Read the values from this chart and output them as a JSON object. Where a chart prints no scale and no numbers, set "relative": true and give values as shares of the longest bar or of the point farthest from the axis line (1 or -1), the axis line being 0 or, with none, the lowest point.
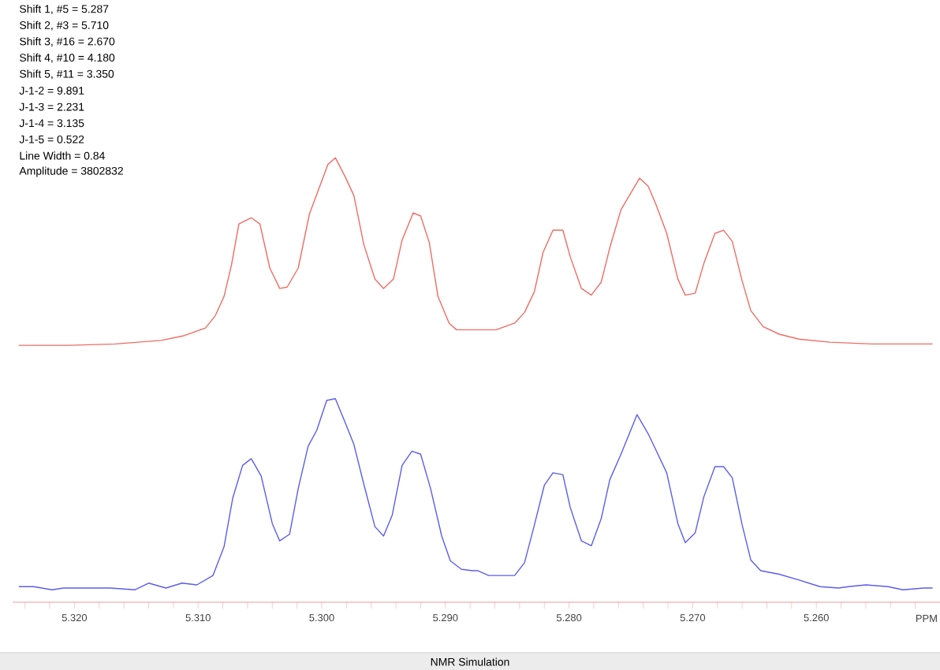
{
  "chart_data": {
    "type": "line",
    "title": "NMR Simulation",
    "xlabel": "PPM",
    "relative": true,
    "annotations": [
      "Shift 1, #5 =   5.287",
      "Shift 2, #3 =   5.710",
      "Shift 3, #16 =   2.670",
      "Shift 4, #10 =   4.180",
      "Shift 5, #11 =   3.350",
      "J-1-2 =   9.891",
      "J-1-3 =   2.231",
      "J-1-4 =   3.135",
      "J-1-5 =   0.522",
      "Line Width =   0.84",
      "Amplitude =      3802832"
    ],
    "xlim": [
      5.325,
      5.25
    ],
    "xticks": [
      {
        "value": 5.324,
        "label": null
      },
      {
        "value": 5.322,
        "label": null
      },
      {
        "value": 5.32,
        "label": "5.320"
      },
      {
        "value": 5.318,
        "label": null
      },
      {
        "value": 5.316,
        "label": null
      },
      {
        "value": 5.314,
        "label": null
      },
      {
        "value": 5.312,
        "label": null
      },
      {
        "value": 5.31,
        "label": "5.310"
      },
      {
        "value": 5.308,
        "label": null
      },
      {
        "value": 5.306,
        "label": null
      },
      {
        "value": 5.304,
        "label": null
      },
      {
        "value": 5.302,
        "label": null
      },
      {
        "value": 5.3,
        "label": "5.300"
      },
      {
        "value": 5.298,
        "label": null
      },
      {
        "value": 5.296,
        "label": null
      },
      {
        "value": 5.294,
        "label": null
      },
      {
        "value": 5.292,
        "label": null
      },
      {
        "value": 5.29,
        "label": "5.290"
      },
      {
        "value": 5.288,
        "label": null
      },
      {
        "value": 5.286,
        "label": null
      },
      {
        "value": 5.284,
        "label": null
      },
      {
        "value": 5.282,
        "label": null
      },
      {
        "value": 5.28,
        "label": "5.280"
      },
      {
        "value": 5.278,
        "label": null
      },
      {
        "value": 5.276,
        "label": null
      },
      {
        "value": 5.274,
        "label": null
      },
      {
        "value": 5.272,
        "label": null
      },
      {
        "value": 5.27,
        "label": "5.270"
      },
      {
        "value": 5.268,
        "label": null
      },
      {
        "value": 5.266,
        "label": null
      },
      {
        "value": 5.264,
        "label": null
      },
      {
        "value": 5.262,
        "label": null
      },
      {
        "value": 5.26,
        "label": "5.260"
      },
      {
        "value": 5.258,
        "label": null
      },
      {
        "value": 5.256,
        "label": null
      },
      {
        "value": 5.254,
        "label": null
      },
      {
        "value": 5.252,
        "label": null
      }
    ],
    "series": [
      {
        "color": "#f06c64",
        "x": [
          5.3245,
          5.3205,
          5.3167,
          5.313,
          5.3111,
          5.3094,
          5.3086,
          5.3079,
          5.3073,
          5.3067,
          5.3057,
          5.305,
          5.3042,
          5.3034,
          5.3028,
          5.3019,
          5.301,
          5.2995,
          5.2989,
          5.2981,
          5.2974,
          5.2966,
          5.2957,
          5.295,
          5.2942,
          5.2935,
          5.2926,
          5.292,
          5.2913,
          5.2906,
          5.2897,
          5.2891,
          5.2874,
          5.2859,
          5.2844,
          5.2836,
          5.2828,
          5.2821,
          5.2813,
          5.2805,
          5.2799,
          5.279,
          5.2782,
          5.2774,
          5.2767,
          5.2758,
          5.2743,
          5.2736,
          5.273,
          5.2721,
          5.2712,
          5.2706,
          5.2698,
          5.2691,
          5.2682,
          5.2675,
          5.2668,
          5.266,
          5.2653,
          5.2643,
          5.263,
          5.2614,
          5.2589,
          5.2555,
          5.2506
        ],
        "values": [
          0.578,
          0.578,
          0.581,
          0.589,
          0.6,
          0.617,
          0.645,
          0.688,
          0.759,
          0.851,
          0.865,
          0.851,
          0.752,
          0.706,
          0.709,
          0.752,
          0.873,
          0.985,
          1,
          0.957,
          0.915,
          0.805,
          0.727,
          0.706,
          0.727,
          0.815,
          0.876,
          0.869,
          0.809,
          0.688,
          0.628,
          0.613,
          0.613,
          0.613,
          0.628,
          0.652,
          0.699,
          0.787,
          0.837,
          0.837,
          0.777,
          0.706,
          0.691,
          0.72,
          0.798,
          0.883,
          0.954,
          0.936,
          0.897,
          0.83,
          0.727,
          0.691,
          0.695,
          0.762,
          0.83,
          0.837,
          0.812,
          0.723,
          0.656,
          0.62,
          0.603,
          0.592,
          0.585,
          0.581,
          0.581
        ]
      },
      {
        "color": "#5c5cf0",
        "x": [
          5.3245,
          5.3233,
          5.3218,
          5.3209,
          5.3192,
          5.318,
          5.3171,
          5.3151,
          5.314,
          5.3126,
          5.3113,
          5.3101,
          5.3088,
          5.3079,
          5.3072,
          5.3064,
          5.3057,
          5.3049,
          5.304,
          5.3034,
          5.3026,
          5.3019,
          5.3011,
          5.3004,
          5.2996,
          5.2989,
          5.2981,
          5.2974,
          5.2966,
          5.2957,
          5.295,
          5.2943,
          5.2935,
          5.2927,
          5.292,
          5.2912,
          5.2903,
          5.2896,
          5.2887,
          5.2878,
          5.2874,
          5.2865,
          5.2844,
          5.2836,
          5.2828,
          5.282,
          5.2813,
          5.2805,
          5.2799,
          5.279,
          5.2782,
          5.2774,
          5.2767,
          5.2758,
          5.2745,
          5.2736,
          5.273,
          5.2721,
          5.2712,
          5.2706,
          5.2698,
          5.2691,
          5.2682,
          5.2675,
          5.2668,
          5.266,
          5.2653,
          5.2645,
          5.263,
          5.2614,
          5.2597,
          5.2582,
          5.2574,
          5.256,
          5.2542,
          5.253,
          5.2513,
          5.2506
        ],
        "values": [
          0.035,
          0.035,
          0.028,
          0.032,
          0.032,
          0.032,
          0.032,
          0.028,
          0.043,
          0.032,
          0.043,
          0.039,
          0.06,
          0.125,
          0.234,
          0.308,
          0.323,
          0.284,
          0.177,
          0.138,
          0.153,
          0.256,
          0.351,
          0.387,
          0.454,
          0.458,
          0.404,
          0.355,
          0.266,
          0.17,
          0.149,
          0.196,
          0.308,
          0.34,
          0.333,
          0.256,
          0.149,
          0.093,
          0.074,
          0.071,
          0.071,
          0.06,
          0.06,
          0.089,
          0.174,
          0.263,
          0.291,
          0.287,
          0.213,
          0.138,
          0.127,
          0.188,
          0.276,
          0.333,
          0.422,
          0.379,
          0.344,
          0.291,
          0.177,
          0.134,
          0.156,
          0.237,
          0.305,
          0.305,
          0.28,
          0.174,
          0.095,
          0.071,
          0.063,
          0.05,
          0.035,
          0.032,
          0.035,
          0.039,
          0.035,
          0.028,
          0.032,
          0.032
        ]
      }
    ]
  }
}
